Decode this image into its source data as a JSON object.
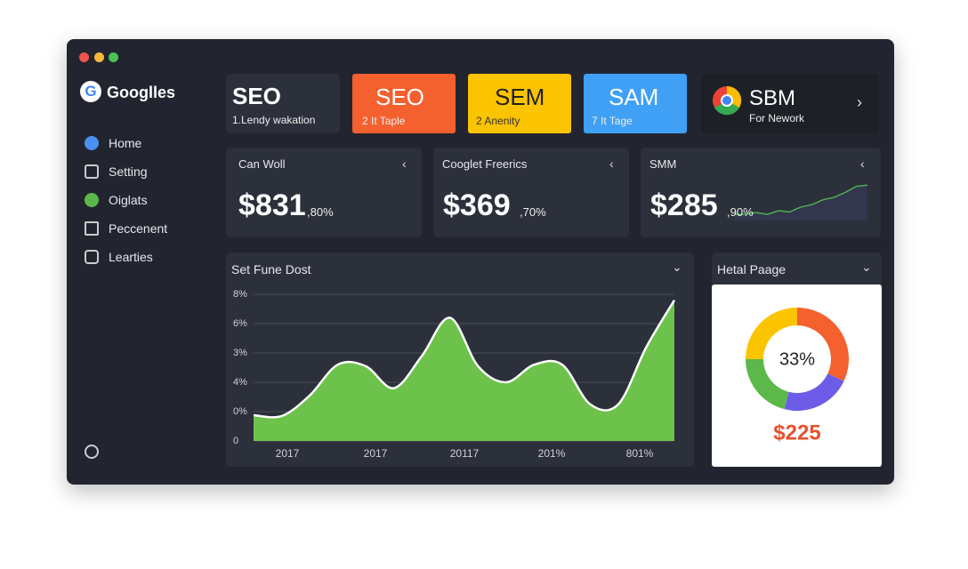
{
  "window": {
    "brand": "Googlles",
    "nav": [
      "Home",
      "Setting",
      "Oiglats",
      "Peccenent",
      "Learties"
    ]
  },
  "tiles": [
    {
      "title": "SEO",
      "subtitle": "1.Lendy wakation"
    },
    {
      "title": "SEO",
      "subtitle": "2 It Taple"
    },
    {
      "title": "SEM",
      "subtitle": "2 Anenity"
    },
    {
      "title": "SAM",
      "subtitle": "7 It Tage"
    },
    {
      "title": "SBM",
      "subtitle": "For Nework"
    }
  ],
  "stats": [
    {
      "label": "Can Woll",
      "value": "$831",
      "suffix": ",80%"
    },
    {
      "label": "Cooglet Freerics",
      "value": "$369",
      "suffix": ",70%"
    },
    {
      "label": "SMM",
      "value": "$285",
      "suffix": ",90%",
      "sparkline": [
        1,
        1,
        1.3,
        1,
        1.6,
        1.4,
        2.2,
        2.6,
        3.4,
        3.8,
        4.6,
        5.6,
        5.8
      ],
      "ylim": [
        0,
        7
      ]
    }
  ],
  "area_chart": {
    "type": "area",
    "title": "Set Fune Dost",
    "color": "#6cc24a",
    "ylim": [
      0,
      5
    ],
    "yticks": [
      {
        "value": 5,
        "label": "8%"
      },
      {
        "value": 4,
        "label": "6%"
      },
      {
        "value": 3,
        "label": "3%"
      },
      {
        "value": 2,
        "label": "4%"
      },
      {
        "value": 1,
        "label": "0%"
      },
      0
    ],
    "x_labels": [
      "2017",
      "2017",
      "20117",
      "201%",
      "801%"
    ],
    "values": [
      0.88,
      0.85,
      1.55,
      2.6,
      2.55,
      1.8,
      2.9,
      4.2,
      2.55,
      2.0,
      2.6,
      2.6,
      1.25,
      1.25,
      3.2,
      4.8
    ],
    "grid": true
  },
  "donut": {
    "type": "donut",
    "title": "Hetal Paage",
    "center_label": "33%",
    "amount": "$225",
    "values": [
      32,
      22,
      21,
      25
    ],
    "colors": [
      "#f4602e",
      "#6c5ce7",
      "#5cb84a",
      "#fbc400"
    ]
  }
}
